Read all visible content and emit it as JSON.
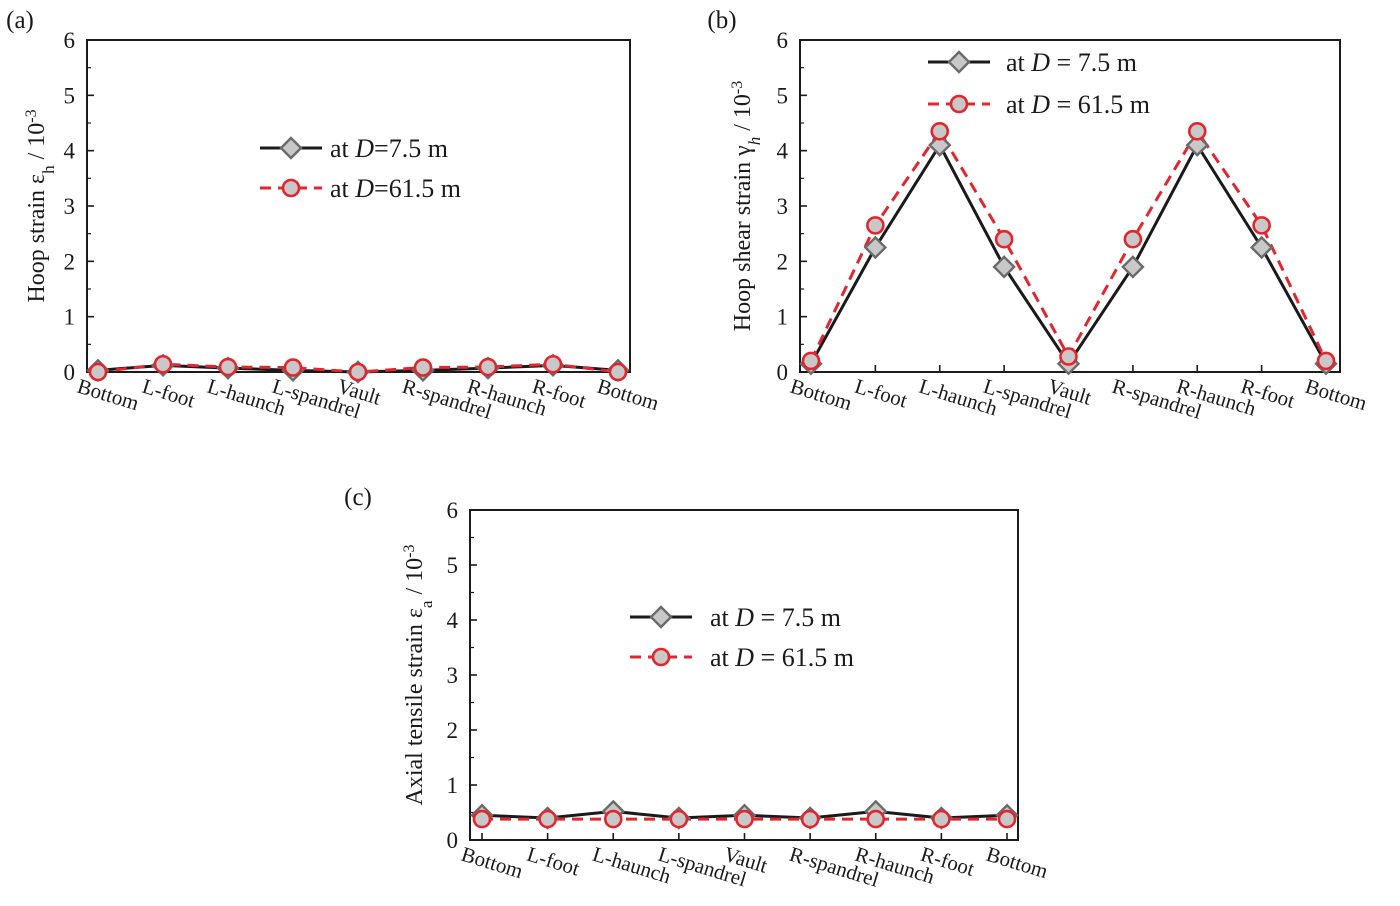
{
  "figure_meta": {
    "line_color": "#1a1a1a",
    "dashed_color": "#e3262d",
    "marker_fill": "#c8c8c8",
    "diamond_stroke": "#6b6b6b"
  },
  "chart_data": [
    {
      "panel": "(a)",
      "type": "line",
      "categories": [
        "Bottom",
        "L-foot",
        "L-haunch",
        "L-spandrel",
        "Vault",
        "R-spandrel",
        "R-haunch",
        "R-foot",
        "Bottom"
      ],
      "ylabel_main": "Hoop strain ε",
      "ylabel_sub": "h",
      "ylabel_unit": " / 10",
      "ylabel_sup": "-3",
      "ylim": [
        0,
        6
      ],
      "yticks": [
        "0",
        "1",
        "2",
        "3",
        "4",
        "5",
        "6"
      ],
      "series": [
        {
          "name_pre": "at ",
          "name_var": "D",
          "name_post": "=7.5 m",
          "marker": "diamond",
          "style": "solid",
          "values": [
            0.03,
            0.12,
            0.07,
            0.03,
            0.0,
            0.03,
            0.07,
            0.12,
            0.03
          ]
        },
        {
          "name_pre": "at ",
          "name_var": "D",
          "name_post": "=61.5 m",
          "marker": "circle",
          "style": "dashed",
          "values": [
            0.0,
            0.14,
            0.09,
            0.08,
            0.0,
            0.08,
            0.09,
            0.14,
            0.0
          ]
        }
      ]
    },
    {
      "panel": "(b)",
      "type": "line",
      "categories": [
        "Bottom",
        "L-foot",
        "L-haunch",
        "L-spandrel",
        "Vault",
        "R-spandrel",
        "R-haunch",
        "R-foot",
        "Bottom"
      ],
      "ylabel_main": "Hoop shear strain γ",
      "ylabel_sub": "h",
      "ylabel_unit": " / 10",
      "ylabel_sup": "-3",
      "ylim": [
        0,
        6
      ],
      "yticks": [
        "0",
        "1",
        "2",
        "3",
        "4",
        "5",
        "6"
      ],
      "series": [
        {
          "name_pre": "at ",
          "name_var": "D",
          "name_post": " = 7.5 m",
          "marker": "diamond",
          "style": "solid",
          "values": [
            0.15,
            2.25,
            4.1,
            1.9,
            0.15,
            1.9,
            4.1,
            2.25,
            0.15
          ]
        },
        {
          "name_pre": "at ",
          "name_var": "D",
          "name_post": " = 61.5 m",
          "marker": "circle",
          "style": "dashed",
          "values": [
            0.2,
            2.65,
            4.35,
            2.4,
            0.28,
            2.4,
            4.35,
            2.65,
            0.2
          ]
        }
      ]
    },
    {
      "panel": "(c)",
      "type": "line",
      "categories": [
        "Bottom",
        "L-foot",
        "L-haunch",
        "L-spandrel",
        "Vault",
        "R-spandrel",
        "R-haunch",
        "R-foot",
        "Bottom"
      ],
      "ylabel_main": "Axial tensile strain ε",
      "ylabel_sub": "a",
      "ylabel_unit": " / 10",
      "ylabel_sup": "-3",
      "ylim": [
        0,
        6
      ],
      "yticks": [
        "0",
        "1",
        "2",
        "3",
        "4",
        "5",
        "6"
      ],
      "series": [
        {
          "name_pre": "at ",
          "name_var": "D",
          "name_post": " = 7.5 m",
          "marker": "diamond",
          "style": "solid",
          "values": [
            0.45,
            0.4,
            0.52,
            0.4,
            0.45,
            0.4,
            0.52,
            0.4,
            0.45
          ]
        },
        {
          "name_pre": "at ",
          "name_var": "D",
          "name_post": " = 61.5 m",
          "marker": "circle",
          "style": "dashed",
          "values": [
            0.38,
            0.38,
            0.38,
            0.38,
            0.38,
            0.38,
            0.38,
            0.38,
            0.38
          ]
        }
      ]
    }
  ]
}
